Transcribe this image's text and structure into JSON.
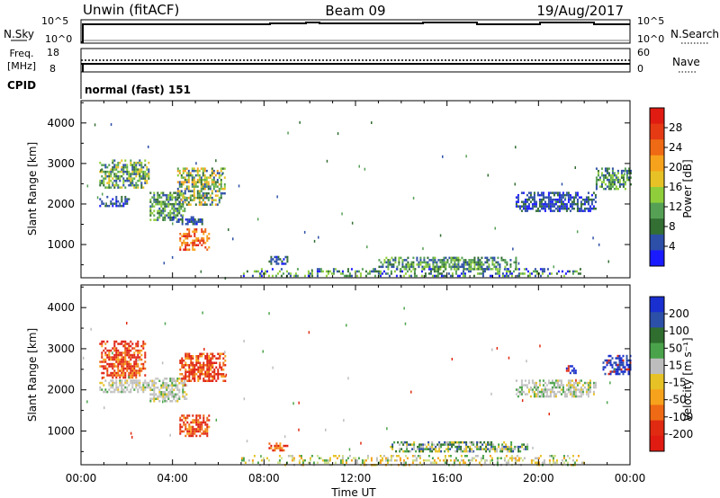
{
  "header": {
    "title_left": "Unwin  (fitACF)",
    "title_center": "Beam 09",
    "title_right": "19/Aug/2017"
  },
  "top_panels": {
    "nsky": {
      "label": "N.Sky",
      "tick_top": "10^5",
      "tick_bottom": "10^0",
      "right_tick_top": "10^5",
      "right_tick_bottom": "10^0",
      "right_label": "N.Search"
    },
    "freq": {
      "label_line1": "Freq.",
      "label_line2": "[MHz]",
      "tick_top": "18",
      "tick_bottom": "8",
      "right_tick_top": "60",
      "right_tick_bottom": "0",
      "right_label": "Nave"
    },
    "cpid": {
      "label": "CPID",
      "text": "normal (fast) 151"
    }
  },
  "chart_data": [
    {
      "type": "heatmap",
      "name": "Power",
      "ylabel": "Slant Range [km]",
      "ylim": [
        180,
        4550
      ],
      "yticks": [
        1000,
        2000,
        3000,
        4000
      ],
      "xlim": [
        0,
        24
      ],
      "colorbar": {
        "label": "Power [dB]",
        "ticks": [
          "4",
          "8",
          "12",
          "16",
          "20",
          "24",
          "28"
        ],
        "colors": [
          "#1a1aff",
          "#2d4fa8",
          "#336e33",
          "#55a055",
          "#8fce3a",
          "#e6c226",
          "#f7a21c",
          "#ef6a14",
          "#e53a14",
          "#e01b12"
        ]
      },
      "regions": [
        {
          "t": [
            0.8,
            3.0
          ],
          "r": [
            2400,
            3100
          ],
          "level": "mixed-low"
        },
        {
          "t": [
            0.8,
            2.2
          ],
          "r": [
            1950,
            2200
          ],
          "level": "low"
        },
        {
          "t": [
            3.0,
            4.5
          ],
          "r": [
            1600,
            2300
          ],
          "level": "mid"
        },
        {
          "t": [
            4.2,
            6.3
          ],
          "r": [
            2000,
            2900
          ],
          "level": "mixed"
        },
        {
          "t": [
            4.0,
            5.3
          ],
          "r": [
            1500,
            1700
          ],
          "level": "low"
        },
        {
          "t": [
            4.3,
            5.6
          ],
          "r": [
            900,
            1400
          ],
          "level": "high"
        },
        {
          "t": [
            8.2,
            9.0
          ],
          "r": [
            550,
            720
          ],
          "level": "low"
        },
        {
          "t": [
            7.0,
            22.0
          ],
          "r": [
            200,
            420
          ],
          "level": "noise"
        },
        {
          "t": [
            13.0,
            19.0
          ],
          "r": [
            420,
            700
          ],
          "level": "low-mid"
        },
        {
          "t": [
            19.0,
            22.5
          ],
          "r": [
            1850,
            2300
          ],
          "level": "low"
        },
        {
          "t": [
            22.5,
            24.0
          ],
          "r": [
            2400,
            2900
          ],
          "level": "mid"
        }
      ]
    },
    {
      "type": "heatmap",
      "name": "Velocity",
      "ylabel": "Slant Range [km]",
      "ylim": [
        180,
        4550
      ],
      "yticks": [
        1000,
        2000,
        3000,
        4000
      ],
      "xlim": [
        0,
        24
      ],
      "xticks": [
        "00:00",
        "04:00",
        "08:00",
        "12:00",
        "16:00",
        "20:00",
        "00:00"
      ],
      "xlabel": "Time UT",
      "colorbar": {
        "label": "Velocity [m s⁻¹]",
        "ticks": [
          "200",
          "100",
          "50",
          "15",
          "-15",
          "-50",
          "-100",
          "-200"
        ],
        "colors": [
          "#1a2fd0",
          "#2c4fa8",
          "#2f6e2f",
          "#4aa34a",
          "#bdbdbd",
          "#e6c226",
          "#f7a21c",
          "#ef6a14",
          "#e02a12",
          "#e01b12"
        ]
      },
      "regions": [
        {
          "t": [
            0.8,
            2.8
          ],
          "r": [
            2300,
            3200
          ],
          "level": "neg-high"
        },
        {
          "t": [
            0.8,
            3.0
          ],
          "r": [
            1950,
            2250
          ],
          "level": "zero"
        },
        {
          "t": [
            3.0,
            4.6
          ],
          "r": [
            1750,
            2300
          ],
          "level": "zero"
        },
        {
          "t": [
            4.3,
            6.3
          ],
          "r": [
            2200,
            2900
          ],
          "level": "neg-high"
        },
        {
          "t": [
            4.3,
            5.6
          ],
          "r": [
            900,
            1400
          ],
          "level": "neg-high"
        },
        {
          "t": [
            8.2,
            9.0
          ],
          "r": [
            550,
            720
          ],
          "level": "neg-high"
        },
        {
          "t": [
            7.0,
            22.0
          ],
          "r": [
            200,
            420
          ],
          "level": "noise"
        },
        {
          "t": [
            13.5,
            19.5
          ],
          "r": [
            480,
            750
          ],
          "level": "pos-low"
        },
        {
          "t": [
            19.0,
            22.5
          ],
          "r": [
            1850,
            2250
          ],
          "level": "zero"
        },
        {
          "t": [
            21.2,
            21.6
          ],
          "r": [
            2400,
            2600
          ],
          "level": "pos-high"
        },
        {
          "t": [
            22.8,
            24.0
          ],
          "r": [
            2400,
            2850
          ],
          "level": "pos-high"
        }
      ]
    }
  ]
}
